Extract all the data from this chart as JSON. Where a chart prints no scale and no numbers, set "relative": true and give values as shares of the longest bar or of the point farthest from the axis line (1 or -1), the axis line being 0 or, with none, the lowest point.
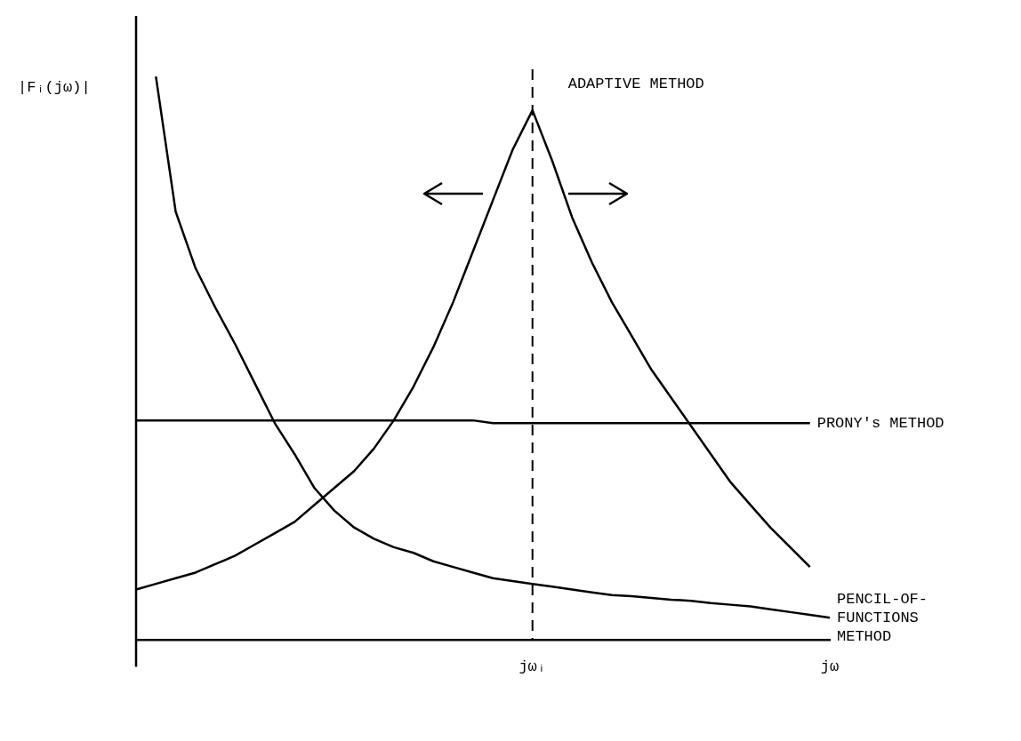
{
  "chart_data": {
    "type": "line",
    "relative": true,
    "ylabel": "|Fᵢ(jω)|",
    "categories": [
      null,
      null,
      null,
      null,
      null,
      null,
      null,
      null,
      null,
      null,
      null,
      null,
      null,
      null,
      null,
      null,
      null,
      null,
      null,
      null,
      "jωᵢ",
      null,
      null,
      null,
      null,
      null,
      null,
      null,
      null,
      null,
      null,
      null,
      null,
      null,
      null,
      "jω"
    ],
    "series": [
      {
        "name": "ADAPTIVE METHOD",
        "color": "#000000",
        "values": [
          0.09,
          0.1,
          0.11,
          0.12,
          0.135,
          0.15,
          0.17,
          0.19,
          0.21,
          0.24,
          0.27,
          0.3,
          0.34,
          0.39,
          0.45,
          0.52,
          0.6,
          0.69,
          0.78,
          0.87,
          0.94,
          0.85,
          0.75,
          0.67,
          0.6,
          0.54,
          0.48,
          0.43,
          0.38,
          0.33,
          0.28,
          0.24,
          0.2,
          0.165,
          0.13,
          null
        ]
      },
      {
        "name": "PRONY's METHOD",
        "color": "#000000",
        "values": [
          0.39,
          0.39,
          0.39,
          0.39,
          0.39,
          0.39,
          0.39,
          0.39,
          0.39,
          0.39,
          0.39,
          0.39,
          0.39,
          0.39,
          0.39,
          0.39,
          0.39,
          0.39,
          0.385,
          0.385,
          0.385,
          0.385,
          0.385,
          0.385,
          0.385,
          0.385,
          0.385,
          0.385,
          0.385,
          0.385,
          0.385,
          0.385,
          0.385,
          0.385,
          0.385,
          null
        ]
      },
      {
        "name": "PENCIL-OF-FUNCTIONS METHOD",
        "color": "#000000",
        "values": [
          null,
          1.0,
          0.76,
          0.66,
          0.59,
          0.525,
          0.455,
          0.385,
          0.33,
          0.27,
          0.23,
          0.2,
          0.18,
          0.165,
          0.155,
          0.14,
          0.13,
          0.12,
          0.11,
          0.105,
          0.1,
          0.095,
          0.09,
          0.085,
          0.08,
          0.078,
          0.075,
          0.072,
          0.07,
          0.066,
          0.063,
          0.06,
          0.055,
          0.05,
          0.045,
          0.04
        ]
      }
    ],
    "ref_lines": [
      {
        "axis": "x",
        "value": "jωᵢ",
        "line_style": "dashed",
        "color": "#000000"
      }
    ],
    "marker": "none",
    "line_style": "solid",
    "grid": false,
    "legend": false
  }
}
